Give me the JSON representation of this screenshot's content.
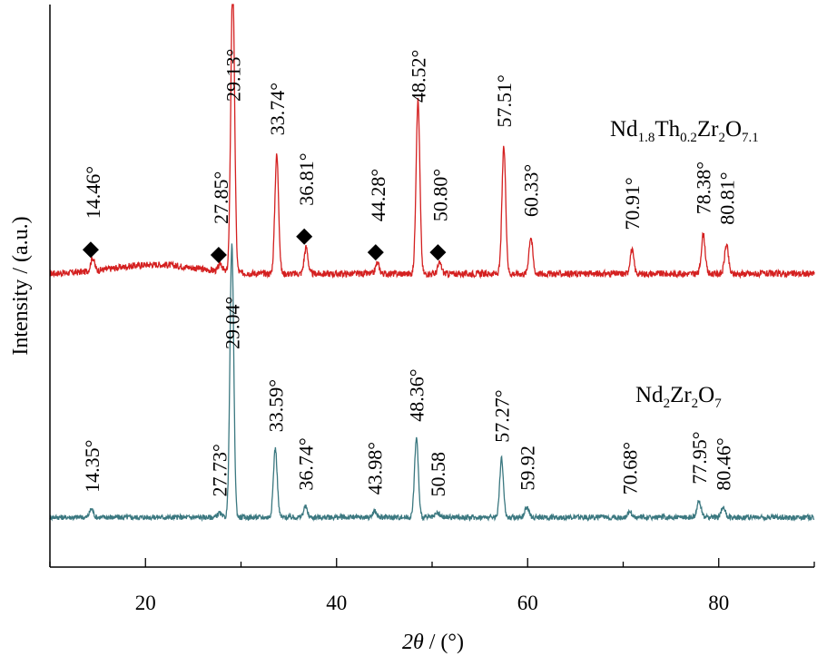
{
  "chart_data": {
    "type": "line",
    "xlabel_parts": {
      "var": "2θ",
      "unit": " / (°)"
    },
    "ylabel": "Intensity / (a.u.)",
    "xlim": [
      10,
      90
    ],
    "xticks": [
      20,
      40,
      60,
      80
    ],
    "grid": false,
    "marker_symbol": "◆",
    "series": [
      {
        "name": "Nd1.8Th0.2Zr2O7.1",
        "name_parts": [
          {
            "t": "Nd",
            "sub": false
          },
          {
            "t": "1.8",
            "sub": true
          },
          {
            "t": "Th",
            "sub": false
          },
          {
            "t": "0.2",
            "sub": true
          },
          {
            "t": "Zr",
            "sub": false
          },
          {
            "t": "2",
            "sub": true
          },
          {
            "t": "O",
            "sub": false
          },
          {
            "t": "7.1",
            "sub": true
          }
        ],
        "color": "#d42020",
        "baseline": 0.7,
        "peaks": [
          {
            "x": 14.46,
            "label": "14.46°",
            "height": 0.5,
            "marked": true
          },
          {
            "x": 27.85,
            "label": "27.85°",
            "height": 0.3,
            "marked": true
          },
          {
            "x": 29.13,
            "label": "29.13°",
            "height": 11.0,
            "marked": false
          },
          {
            "x": 33.74,
            "label": "33.74°",
            "height": 4.5,
            "marked": false
          },
          {
            "x": 36.81,
            "label": "36.81°",
            "height": 1.0,
            "marked": true
          },
          {
            "x": 44.28,
            "label": "44.28°",
            "height": 0.4,
            "marked": true
          },
          {
            "x": 48.52,
            "label": "48.52°",
            "height": 6.6,
            "marked": false
          },
          {
            "x": 50.8,
            "label": "50.80°",
            "height": 0.4,
            "marked": true
          },
          {
            "x": 57.51,
            "label": "57.51°",
            "height": 4.8,
            "marked": false
          },
          {
            "x": 60.33,
            "label": "60.33°",
            "height": 1.4,
            "marked": false
          },
          {
            "x": 70.91,
            "label": "70.91°",
            "height": 0.9,
            "marked": false
          },
          {
            "x": 78.38,
            "label": "78.38°",
            "height": 1.5,
            "marked": false
          },
          {
            "x": 80.81,
            "label": "80.81°",
            "height": 1.1,
            "marked": false
          }
        ]
      },
      {
        "name": "Nd2Zr2O7",
        "name_parts": [
          {
            "t": "Nd",
            "sub": false
          },
          {
            "t": "2",
            "sub": true
          },
          {
            "t": "Zr",
            "sub": false
          },
          {
            "t": "2",
            "sub": true
          },
          {
            "t": "O",
            "sub": false
          },
          {
            "t": "7",
            "sub": true
          }
        ],
        "color": "#3b7880",
        "baseline": 0.3,
        "peaks": [
          {
            "x": 14.35,
            "label": "14.35°",
            "height": 0.4,
            "marked": false
          },
          {
            "x": 27.73,
            "label": "27.73°",
            "height": 0.2,
            "marked": false
          },
          {
            "x": 29.04,
            "label": "29.04°",
            "height": 13.0,
            "marked": false
          },
          {
            "x": 33.59,
            "label": "33.59°",
            "height": 3.3,
            "marked": false
          },
          {
            "x": 36.74,
            "label": "36.74°",
            "height": 0.5,
            "marked": false
          },
          {
            "x": 43.98,
            "label": "43.98°",
            "height": 0.3,
            "marked": false
          },
          {
            "x": 48.36,
            "label": "48.36°",
            "height": 3.8,
            "marked": false
          },
          {
            "x": 50.58,
            "label": "50.58",
            "height": 0.2,
            "marked": false
          },
          {
            "x": 57.27,
            "label": "57.27°",
            "height": 2.8,
            "marked": false
          },
          {
            "x": 59.92,
            "label": "59.92",
            "height": 0.5,
            "marked": false
          },
          {
            "x": 70.68,
            "label": "70.68°",
            "height": 0.3,
            "marked": false
          },
          {
            "x": 77.95,
            "label": "77.95°",
            "height": 0.8,
            "marked": false
          },
          {
            "x": 80.46,
            "label": "80.46°",
            "height": 0.5,
            "marked": false
          }
        ]
      }
    ]
  }
}
